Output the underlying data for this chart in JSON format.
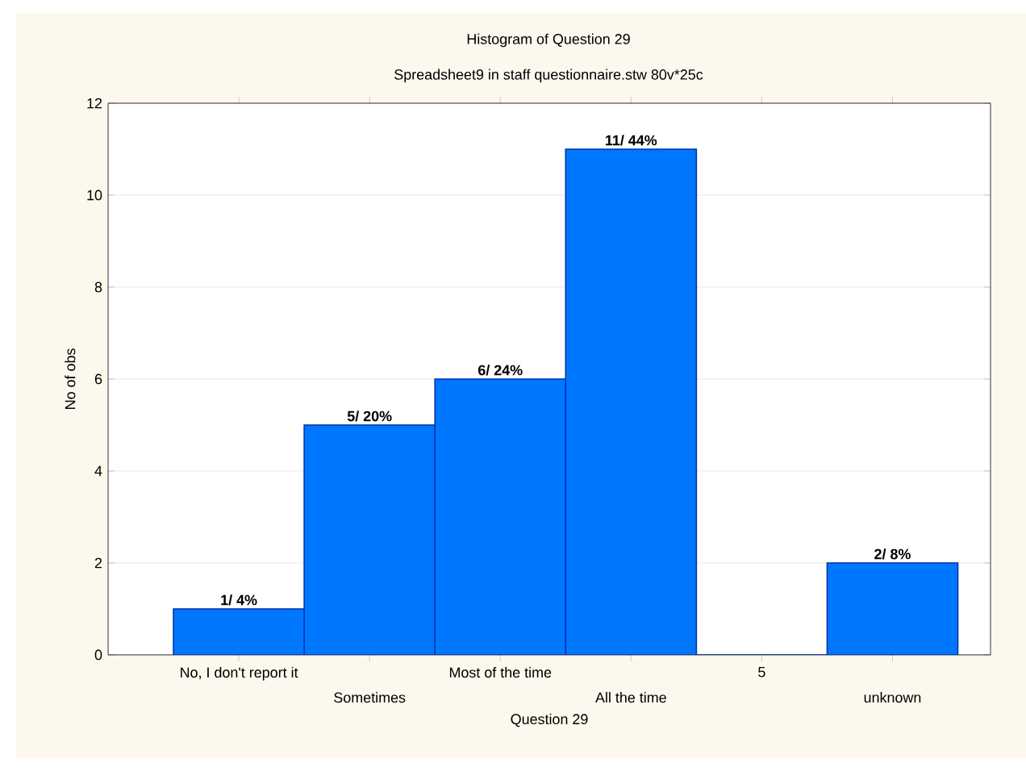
{
  "chart_data": {
    "type": "bar",
    "title": "Histogram of Question 29",
    "subtitle": "Spreadsheet9 in staff questionnaire.stw 80v*25c",
    "xlabel": "Question 29",
    "ylabel": "No of obs",
    "categories": [
      "No, I don't report it",
      "Sometimes",
      "Most of the time",
      "All the time",
      "5",
      "unknown"
    ],
    "values": [
      1,
      5,
      6,
      11,
      0,
      2
    ],
    "value_labels": [
      "1/ 4%",
      "5/ 20%",
      "6/ 24%",
      "11/ 44%",
      null,
      "2/ 8%"
    ],
    "color": "#0077ff",
    "ylim": [
      0,
      12
    ],
    "yticks": [
      0,
      2,
      4,
      6,
      8,
      10,
      12
    ],
    "grid": "y"
  }
}
